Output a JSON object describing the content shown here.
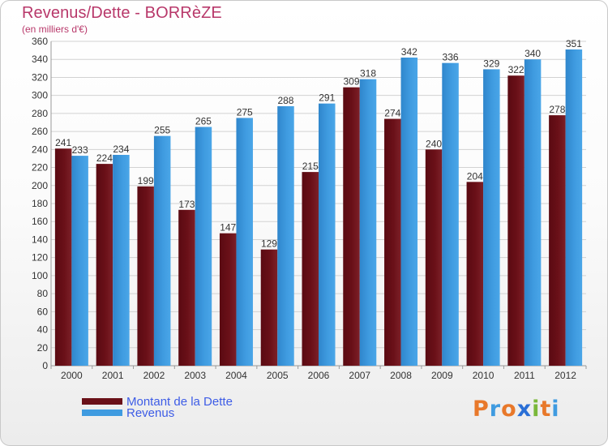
{
  "header": {
    "title": "Revenus/Dette - BORRèZE",
    "subtitle": "(en milliers d'€)"
  },
  "colors": {
    "title": "#b8386a",
    "dette": "#6a1018",
    "revenus": "#3f9be0",
    "legend_text": "#3d5ce6",
    "grid": "#d2d2d2"
  },
  "chart_data": {
    "type": "bar",
    "categories": [
      "2000",
      "2001",
      "2002",
      "2003",
      "2004",
      "2005",
      "2006",
      "2007",
      "2008",
      "2009",
      "2010",
      "2011",
      "2012"
    ],
    "series": [
      {
        "name": "Montant de la Dette",
        "values": [
          241,
          224,
          199,
          173,
          147,
          129,
          215,
          309,
          274,
          240,
          204,
          322,
          278
        ]
      },
      {
        "name": "Revenus",
        "values": [
          233,
          234,
          255,
          265,
          275,
          288,
          291,
          318,
          342,
          336,
          329,
          340,
          351
        ]
      }
    ],
    "title": "Revenus/Dette - BORRèZE",
    "subtitle": "(en milliers d'€)",
    "ylim": [
      0,
      360
    ],
    "ytick_step": 20,
    "grid": true,
    "legend_position": "bottom-left"
  },
  "legend": {
    "items": [
      {
        "label": "Montant de la Dette"
      },
      {
        "label": "Revenus"
      }
    ]
  },
  "logo": {
    "text": "Proxiti",
    "letter_colors": [
      "#e8782a",
      "#3f9be0",
      "#e8782a",
      "#2a6fd6",
      "#7ab83a",
      "#e8782a",
      "#3f9be0"
    ]
  }
}
